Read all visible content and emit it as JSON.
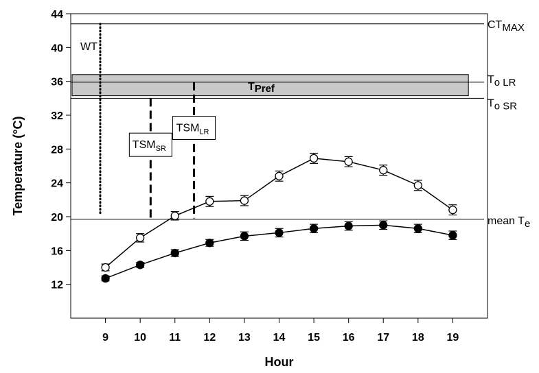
{
  "chart_data": {
    "type": "line",
    "title": "",
    "xlabel": "Hour",
    "ylabel": "Temperature (°C)",
    "xlim": [
      8,
      20
    ],
    "ylim": [
      8,
      44
    ],
    "x_ticks": [
      9,
      10,
      11,
      12,
      13,
      14,
      15,
      16,
      17,
      18,
      19
    ],
    "y_ticks": [
      12,
      16,
      20,
      24,
      28,
      32,
      36,
      40,
      44
    ],
    "grid": false,
    "legend": "none",
    "series": [
      {
        "marker": "open-circle",
        "x": [
          9,
          10,
          11,
          12,
          13,
          14,
          15,
          16,
          17,
          18,
          19
        ],
        "y": [
          14.0,
          17.5,
          20.1,
          21.8,
          21.9,
          24.8,
          26.9,
          26.5,
          25.5,
          23.7,
          20.8
        ],
        "err": [
          0.4,
          0.5,
          0.5,
          0.6,
          0.6,
          0.6,
          0.6,
          0.6,
          0.6,
          0.6,
          0.6
        ]
      },
      {
        "marker": "filled-circle",
        "x": [
          9,
          10,
          11,
          12,
          13,
          14,
          15,
          16,
          17,
          18,
          19
        ],
        "y": [
          12.7,
          14.3,
          15.7,
          16.9,
          17.7,
          18.1,
          18.6,
          18.9,
          19.0,
          18.6,
          17.8
        ],
        "err": [
          0.3,
          0.3,
          0.4,
          0.4,
          0.5,
          0.5,
          0.5,
          0.5,
          0.5,
          0.5,
          0.5
        ]
      }
    ],
    "reference_lines": [
      {
        "y": 42.8,
        "label": "CT",
        "sub": "MAX"
      },
      {
        "y": 35.9,
        "label": "T",
        "sub": "o LR"
      },
      {
        "y": 34.0,
        "label": "T",
        "sub": "o SR"
      },
      {
        "y": 19.7,
        "label": "mean T",
        "sub": "e"
      }
    ],
    "preferred_band": {
      "y_min": 34.3,
      "y_max": 36.8,
      "label": "T",
      "sub": "Pref"
    },
    "wt_line": {
      "x": 8.85,
      "y_min": 8,
      "y_max": 42.8,
      "label": "WT"
    },
    "margins": [
      {
        "x": 10.3,
        "y_min": 8,
        "y_max": 34.0,
        "label": "TSM",
        "sub": "SR",
        "label_x": 10.3,
        "label_y": 28.5
      },
      {
        "x": 11.55,
        "y_min": 19.8,
        "y_max": 35.9,
        "label": "TSM",
        "sub": "LR",
        "label_x": 11.55,
        "label_y": 30.5
      }
    ]
  }
}
